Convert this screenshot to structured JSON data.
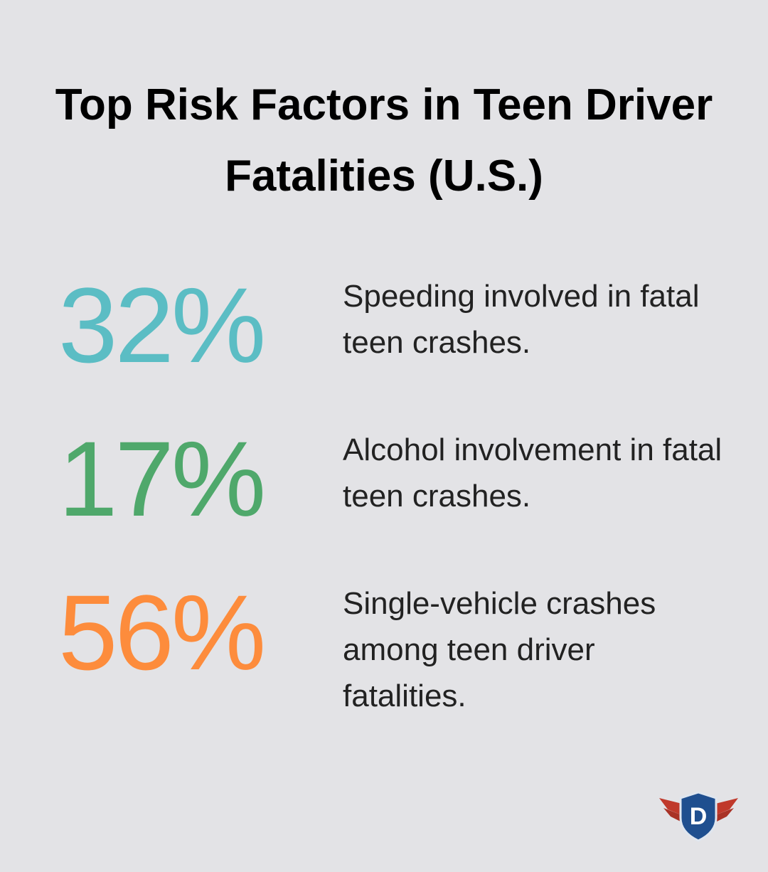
{
  "header": {
    "title": "Top Risk Factors in Teen Driver Fatalities (U.S.)"
  },
  "stats": [
    {
      "value": "32%",
      "description": "Speeding involved in fatal teen crashes.",
      "color": "#5bbdc4"
    },
    {
      "value": "17%",
      "description": "Alcohol involvement in fatal teen crashes.",
      "color": "#4fa86b"
    },
    {
      "value": "56%",
      "description": "Single-vehicle crashes among teen driver fatalities.",
      "color": "#fd8c3c"
    }
  ],
  "logo": {
    "letter": "D"
  }
}
